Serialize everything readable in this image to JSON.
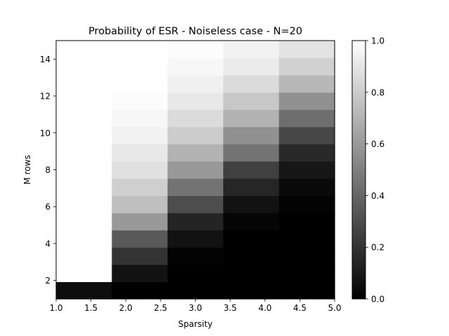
{
  "chart_data": {
    "type": "heatmap",
    "title": "Probability of ESR - Noiseless case - N=20",
    "xlabel": "Sparsity",
    "ylabel": "M rows",
    "x_columns": [
      1,
      2,
      3,
      4,
      5
    ],
    "y_rows": [
      1,
      2,
      3,
      4,
      5,
      6,
      7,
      8,
      9,
      10,
      11,
      12,
      13,
      14,
      15
    ],
    "xlim": [
      1.0,
      5.0
    ],
    "ylim": [
      1,
      15
    ],
    "x_ticks": [
      1.0,
      1.5,
      2.0,
      2.5,
      3.0,
      3.5,
      4.0,
      4.5,
      5.0
    ],
    "x_tick_labels": [
      "1.0",
      "1.5",
      "2.0",
      "2.5",
      "3.0",
      "3.5",
      "4.0",
      "4.5",
      "5.0"
    ],
    "y_ticks": [
      2,
      4,
      6,
      8,
      10,
      12,
      14
    ],
    "y_tick_labels": [
      "2",
      "4",
      "6",
      "8",
      "10",
      "12",
      "14"
    ],
    "values_by_row": [
      [
        0.05,
        0.0,
        0.0,
        0.0,
        0.0
      ],
      [
        1.0,
        0.07,
        0.0,
        0.0,
        0.0
      ],
      [
        1.0,
        0.2,
        0.01,
        0.0,
        0.0
      ],
      [
        1.0,
        0.35,
        0.07,
        0.0,
        0.0
      ],
      [
        1.0,
        0.6,
        0.14,
        0.02,
        0.0
      ],
      [
        1.0,
        0.75,
        0.3,
        0.07,
        0.01
      ],
      [
        1.0,
        0.81,
        0.45,
        0.15,
        0.04
      ],
      [
        1.0,
        0.88,
        0.6,
        0.25,
        0.09
      ],
      [
        1.0,
        0.91,
        0.7,
        0.45,
        0.16
      ],
      [
        1.0,
        0.95,
        0.8,
        0.57,
        0.28
      ],
      [
        1.0,
        0.97,
        0.86,
        0.7,
        0.43
      ],
      [
        1.0,
        0.99,
        0.91,
        0.78,
        0.57
      ],
      [
        1.0,
        0.995,
        0.94,
        0.86,
        0.72
      ],
      [
        1.0,
        1.0,
        0.97,
        0.92,
        0.82
      ],
      [
        1.0,
        1.0,
        0.99,
        0.95,
        0.89
      ]
    ],
    "colormap": "gray",
    "colorbar": {
      "range": [
        0.0,
        1.0
      ],
      "ticks": [
        0.0,
        0.2,
        0.4,
        0.6,
        0.8,
        1.0
      ],
      "tick_labels": [
        "0.0",
        "0.2",
        "0.4",
        "0.6",
        "0.8",
        "1.0"
      ]
    },
    "grid": false
  }
}
